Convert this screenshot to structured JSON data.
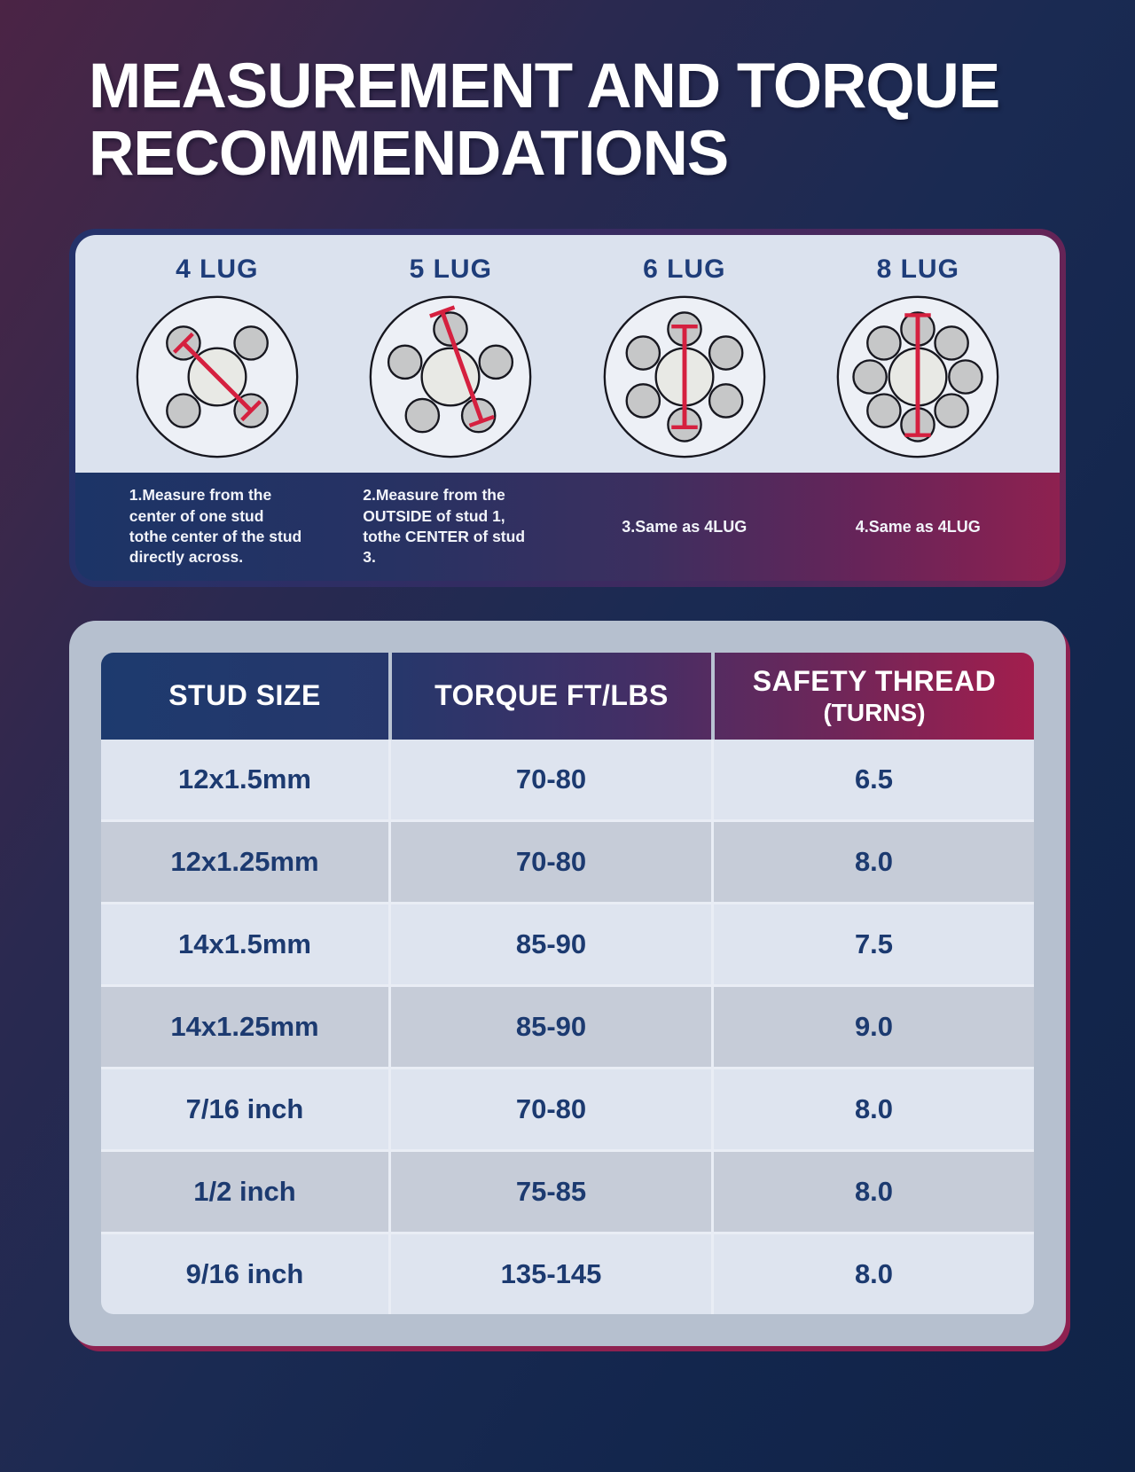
{
  "title": {
    "line1": "MEASUREMENT AND TORQUE",
    "line2": "RECOMMENDATIONS"
  },
  "lug_panel": {
    "wheels": [
      {
        "label": "4 LUG",
        "lugs": 4,
        "note": "1.Measure from the center of one stud tothe center of the stud directly across.",
        "note_style": "paragraph"
      },
      {
        "label": "5 LUG",
        "lugs": 5,
        "note": "2.Measure from the OUTSIDE of stud 1, tothe CENTER of stud 3.",
        "note_style": "paragraph"
      },
      {
        "label": "6 LUG",
        "lugs": 6,
        "note": "3.Same as 4LUG",
        "note_style": "single"
      },
      {
        "label": "8 LUG",
        "lugs": 8,
        "note": "4.Same as 4LUG",
        "note_style": "single"
      }
    ]
  },
  "torque_table": {
    "headers": [
      {
        "label": "STUD SIZE"
      },
      {
        "label": "TORQUE FT/LBS"
      },
      {
        "label": "SAFETY THREAD",
        "sub": "(TURNS)"
      }
    ],
    "rows": [
      {
        "stud_size": "12x1.5mm",
        "torque": "70-80",
        "safety_thread": "6.5"
      },
      {
        "stud_size": "12x1.25mm",
        "torque": "70-80",
        "safety_thread": "8.0"
      },
      {
        "stud_size": "14x1.5mm",
        "torque": "85-90",
        "safety_thread": "7.5"
      },
      {
        "stud_size": "14x1.25mm",
        "torque": "85-90",
        "safety_thread": "9.0"
      },
      {
        "stud_size": "7/16 inch",
        "torque": "70-80",
        "safety_thread": "8.0"
      },
      {
        "stud_size": "1/2 inch",
        "torque": "75-85",
        "safety_thread": "8.0"
      },
      {
        "stud_size": "9/16 inch",
        "torque": "135-145",
        "safety_thread": "8.0"
      }
    ]
  },
  "colors": {
    "accent_red": "#d5203f",
    "navy": "#1d3a6d",
    "maroon": "#8e2150",
    "panel_light": "#dbe2ee",
    "row_light": "#dee4ef",
    "row_dark": "#c6ccd8",
    "card_bg": "#b6c0cf",
    "text_light": "#f2f4fa"
  }
}
